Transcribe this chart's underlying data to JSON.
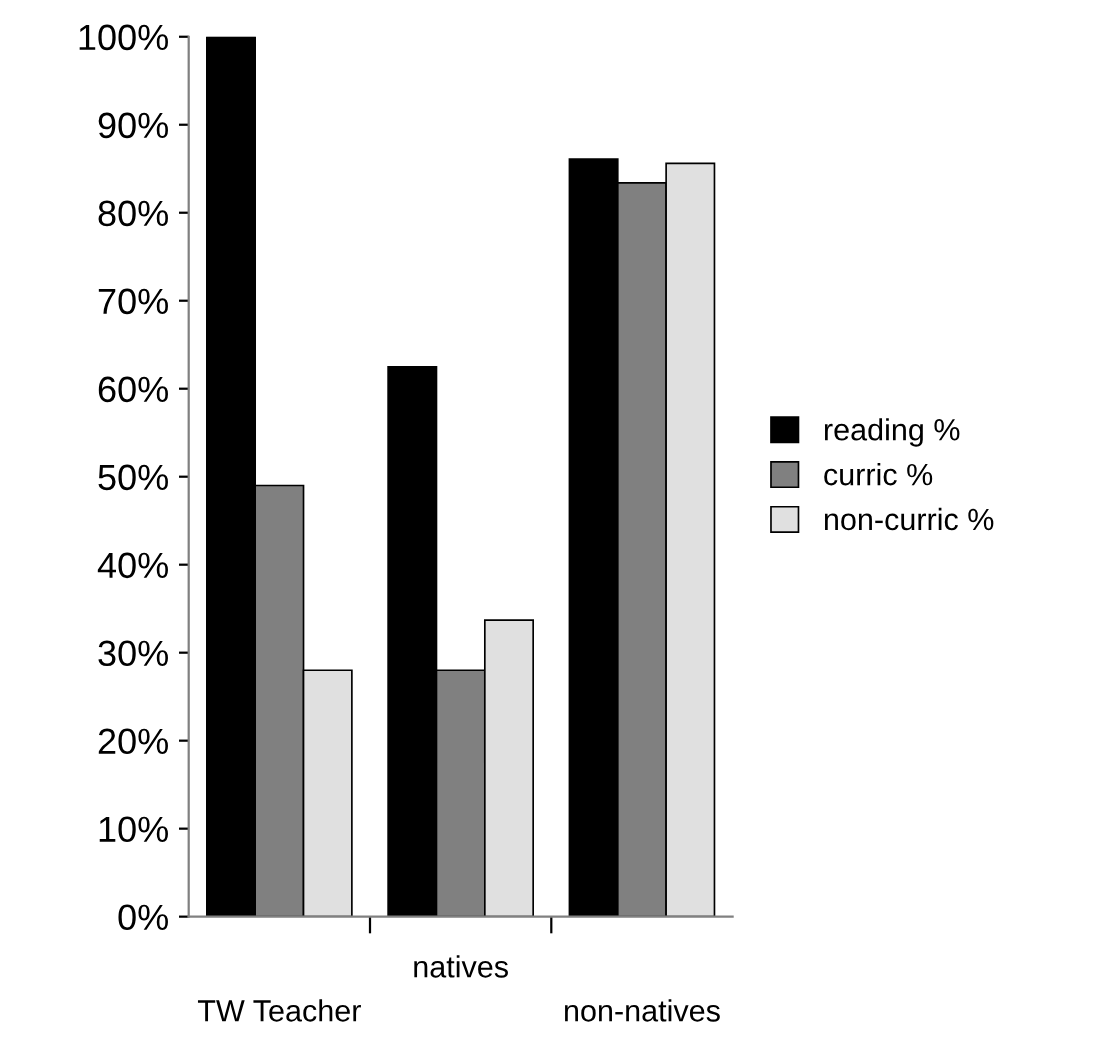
{
  "chart_data": {
    "type": "bar",
    "categories": [
      "TW Teacher",
      "natives",
      "non-natives"
    ],
    "series": [
      {
        "name": "reading %",
        "color": "#000000",
        "values": [
          100,
          62.5,
          86.1
        ]
      },
      {
        "name": "curric %",
        "color": "#808080",
        "values": [
          49,
          28,
          83.4
        ]
      },
      {
        "name": "non-curric %",
        "color": "#e0e0e0",
        "values": [
          28,
          33.7,
          85.6
        ]
      }
    ],
    "ylim": [
      0,
      100
    ],
    "yticks": [
      {
        "value": 0,
        "label": "0%"
      },
      {
        "value": 10,
        "label": "10%"
      },
      {
        "value": 20,
        "label": "20%"
      },
      {
        "value": 30,
        "label": "30%"
      },
      {
        "value": 40,
        "label": "40%"
      },
      {
        "value": 50,
        "label": "50%"
      },
      {
        "value": 60,
        "label": "60%"
      },
      {
        "value": 70,
        "label": "70%"
      },
      {
        "value": 80,
        "label": "80%"
      },
      {
        "value": 90,
        "label": "90%"
      },
      {
        "value": 100,
        "label": "100%"
      }
    ],
    "grid": false,
    "legend": "right"
  }
}
